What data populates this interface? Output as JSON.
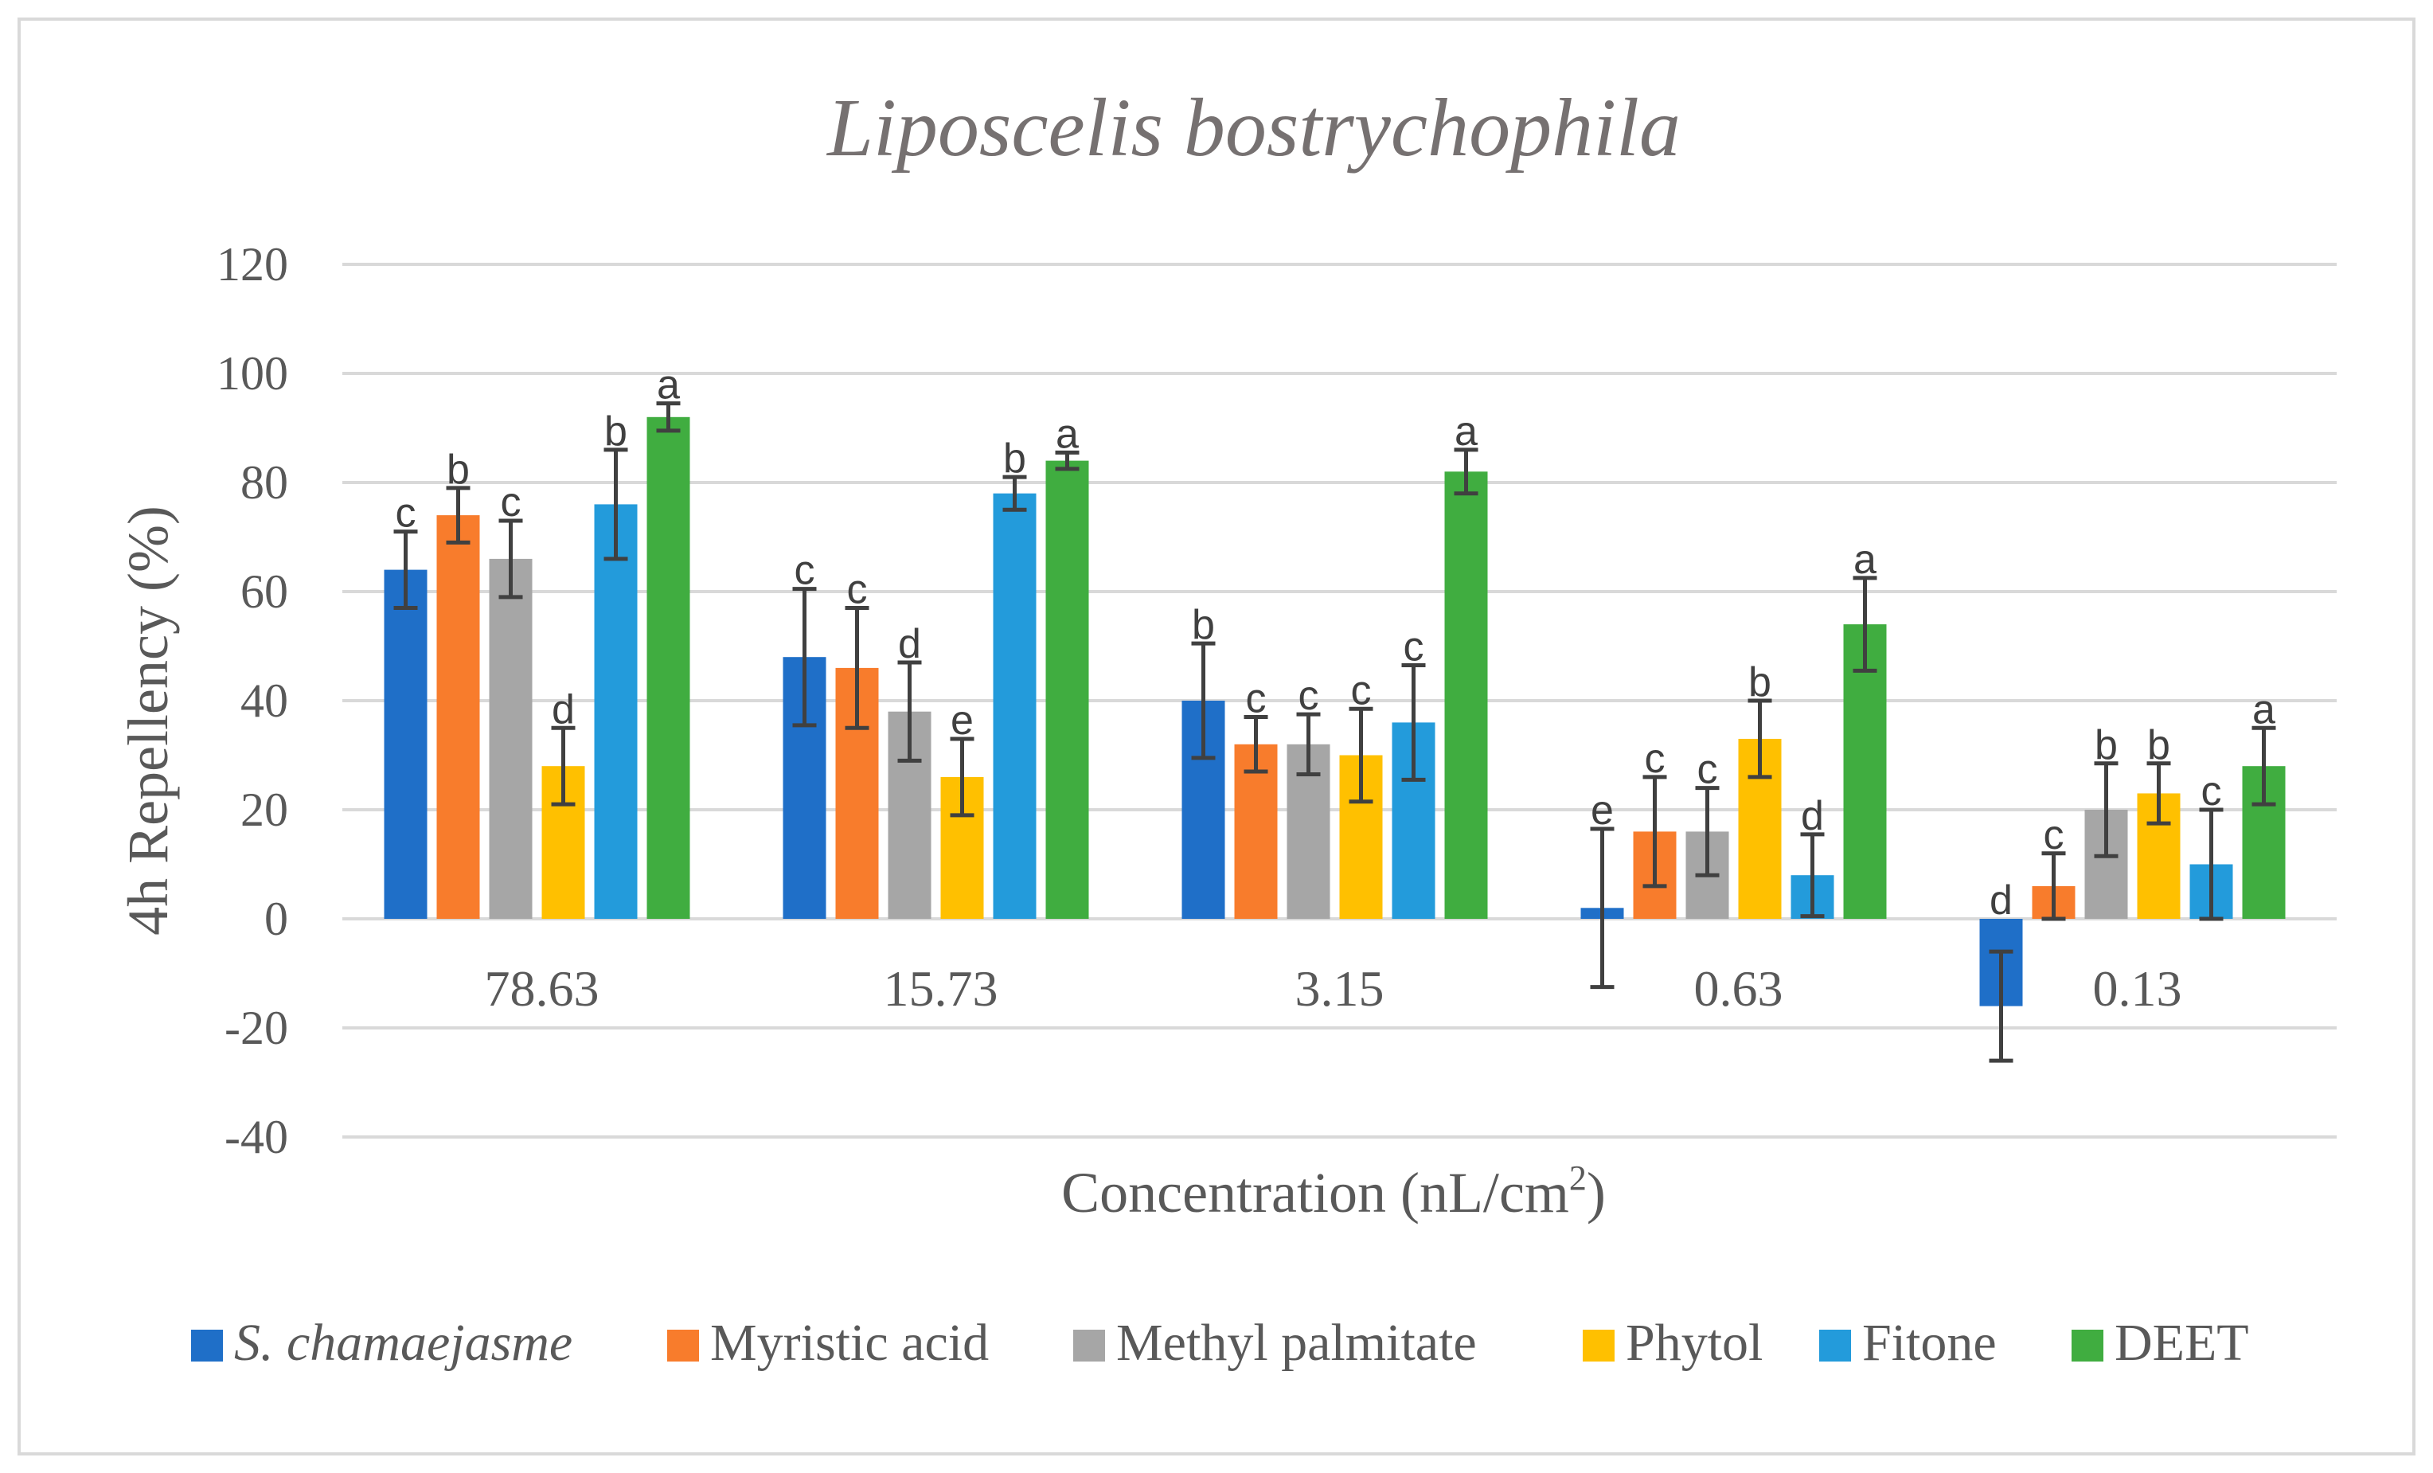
{
  "chart_data": {
    "type": "bar",
    "title": "Liposcelis bostrychophila",
    "xlabel": "Concentration (nL/cm",
    "xlabel_superscript": "2",
    "xlabel_suffix": ")",
    "ylabel": "4h Repellency (%)",
    "ylim": [
      -40,
      120
    ],
    "yticks": [
      -40,
      -20,
      0,
      20,
      40,
      60,
      80,
      100,
      120
    ],
    "grid": true,
    "legend_position": "bottom",
    "categories": [
      "78.63",
      "15.73",
      "3.15",
      "0.63",
      "0.13"
    ],
    "series": [
      {
        "name": "S. chamaejasme",
        "italic": true,
        "color": "#1f6fc8",
        "values": [
          64,
          48,
          40,
          2,
          -16
        ],
        "errors": [
          7,
          12.5,
          10.5,
          14.5,
          10
        ],
        "letters": [
          "c",
          "c",
          "b",
          "e",
          "d"
        ]
      },
      {
        "name": "Myristic acid",
        "italic": false,
        "color": "#f87c2c",
        "values": [
          74,
          46,
          32,
          16,
          6
        ],
        "errors": [
          5,
          11,
          5,
          10,
          6
        ],
        "letters": [
          "b",
          "c",
          "c",
          "c",
          "c"
        ]
      },
      {
        "name": "Methyl palmitate",
        "italic": false,
        "color": "#a6a6a6",
        "values": [
          66,
          38,
          32,
          16,
          20
        ],
        "errors": [
          7,
          9,
          5.5,
          8,
          8.5
        ],
        "letters": [
          "c",
          "d",
          "c",
          "c",
          "b"
        ]
      },
      {
        "name": "Phytol",
        "italic": false,
        "color": "#ffc000",
        "values": [
          28,
          26,
          30,
          33,
          23
        ],
        "errors": [
          7,
          7,
          8.5,
          7,
          5.5
        ],
        "letters": [
          "d",
          "e",
          "c",
          "b",
          "b"
        ]
      },
      {
        "name": "Fitone",
        "italic": false,
        "color": "#239bdb",
        "values": [
          76,
          78,
          36,
          8,
          10
        ],
        "errors": [
          10,
          3,
          10.5,
          7.5,
          10
        ],
        "letters": [
          "b",
          "b",
          "c",
          "d",
          "c"
        ]
      },
      {
        "name": "DEET",
        "italic": false,
        "color": "#40ad40",
        "values": [
          92,
          84,
          82,
          54,
          28
        ],
        "errors": [
          2.5,
          1.5,
          4,
          8.5,
          7
        ],
        "letters": [
          "a",
          "a",
          "a",
          "a",
          "a"
        ]
      }
    ],
    "colors": {
      "grid": "#d9d9d9",
      "error_bar": "#404040",
      "title": "#767171",
      "text": "#595959"
    }
  }
}
